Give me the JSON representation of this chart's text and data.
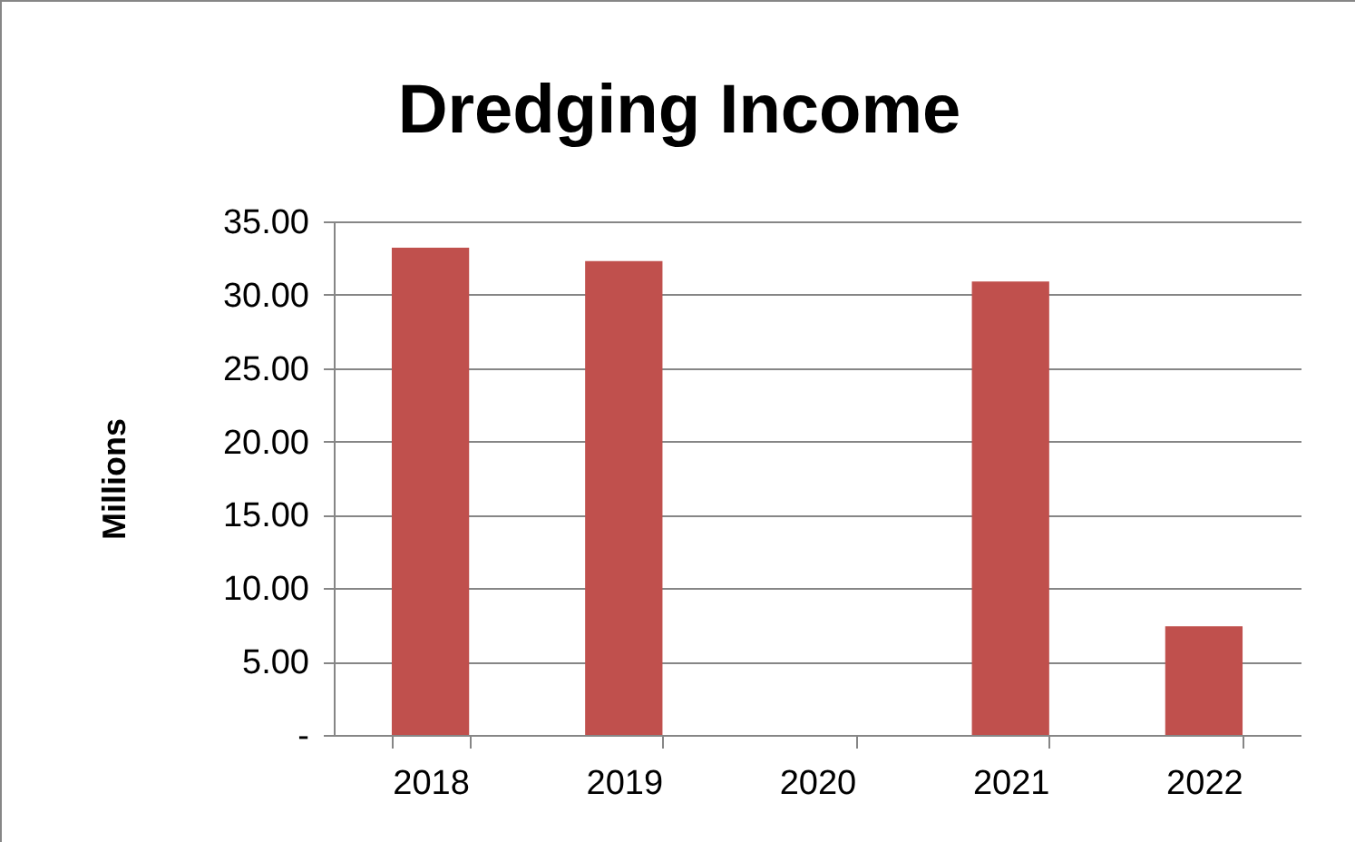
{
  "chart_data": {
    "type": "bar",
    "title": "Dredging Income",
    "ylabel": "Millions",
    "categories": [
      "2018",
      "2019",
      "2020",
      "2021",
      "2022"
    ],
    "values": [
      33.2,
      32.3,
      0,
      30.9,
      7.4
    ],
    "color": "#c0504d",
    "ylim": [
      0,
      35
    ],
    "yticks": [
      {
        "value": 0,
        "label": "-"
      },
      {
        "value": 5,
        "label": "5.00"
      },
      {
        "value": 10,
        "label": "10.00"
      },
      {
        "value": 15,
        "label": "15.00"
      },
      {
        "value": 20,
        "label": "20.00"
      },
      {
        "value": 25,
        "label": "25.00"
      },
      {
        "value": 30,
        "label": "30.00"
      },
      {
        "value": 35,
        "label": "35.00"
      }
    ],
    "grid": "y"
  }
}
